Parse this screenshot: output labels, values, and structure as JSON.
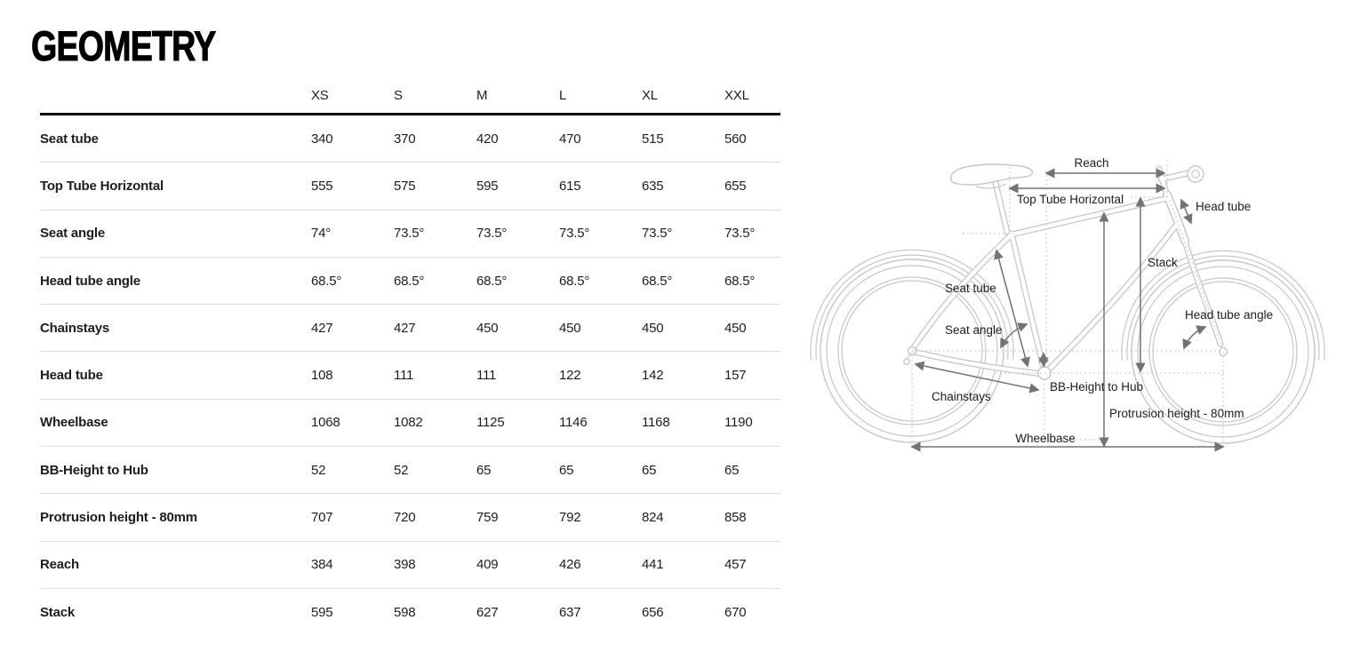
{
  "page": {
    "heading": "GEOMETRY"
  },
  "colors": {
    "heading": "#000000",
    "table_text": "#1d1d1b",
    "row_divider": "#dcdcdc",
    "header_rule": "#000000",
    "background": "#ffffff",
    "bike_outline": "#c7c7c7",
    "measure_arrow": "#737373",
    "guide_line": "#c6c6c6",
    "label_text": "#1d1d1b"
  },
  "geometry_table": {
    "size_columns": [
      "XS",
      "S",
      "M",
      "L",
      "XL",
      "XXL"
    ],
    "rows": [
      {
        "label": "Seat tube",
        "values": [
          "340",
          "370",
          "420",
          "470",
          "515",
          "560"
        ]
      },
      {
        "label": "Top Tube Horizontal",
        "values": [
          "555",
          "575",
          "595",
          "615",
          "635",
          "655"
        ]
      },
      {
        "label": "Seat angle",
        "values": [
          "74°",
          "73.5°",
          "73.5°",
          "73.5°",
          "73.5°",
          "73.5°"
        ]
      },
      {
        "label": "Head tube angle",
        "values": [
          "68.5°",
          "68.5°",
          "68.5°",
          "68.5°",
          "68.5°",
          "68.5°"
        ]
      },
      {
        "label": "Chainstays",
        "values": [
          "427",
          "427",
          "450",
          "450",
          "450",
          "450"
        ]
      },
      {
        "label": "Head tube",
        "values": [
          "108",
          "111",
          "111",
          "122",
          "142",
          "157"
        ]
      },
      {
        "label": "Wheelbase",
        "values": [
          "1068",
          "1082",
          "1125",
          "1146",
          "1168",
          "1190"
        ]
      },
      {
        "label": "BB-Height to Hub",
        "values": [
          "52",
          "52",
          "65",
          "65",
          "65",
          "65"
        ]
      },
      {
        "label": "Protrusion height - 80mm",
        "values": [
          "707",
          "720",
          "759",
          "792",
          "824",
          "858"
        ]
      },
      {
        "label": "Reach",
        "values": [
          "384",
          "398",
          "409",
          "426",
          "441",
          "457"
        ]
      },
      {
        "label": "Stack",
        "values": [
          "595",
          "598",
          "627",
          "637",
          "656",
          "670"
        ]
      }
    ]
  },
  "diagram": {
    "labels": {
      "reach": "Reach",
      "top_tube_horizontal": "Top Tube Horizontal",
      "head_tube": "Head tube",
      "stack": "Stack",
      "seat_tube": "Seat tube",
      "seat_angle": "Seat angle",
      "head_tube_angle": "Head tube angle",
      "chainstays": "Chainstays",
      "bb_height_to_hub": "BB-Height to Hub",
      "protrusion_height": "Protrusion height - 80mm",
      "wheelbase": "Wheelbase"
    }
  }
}
